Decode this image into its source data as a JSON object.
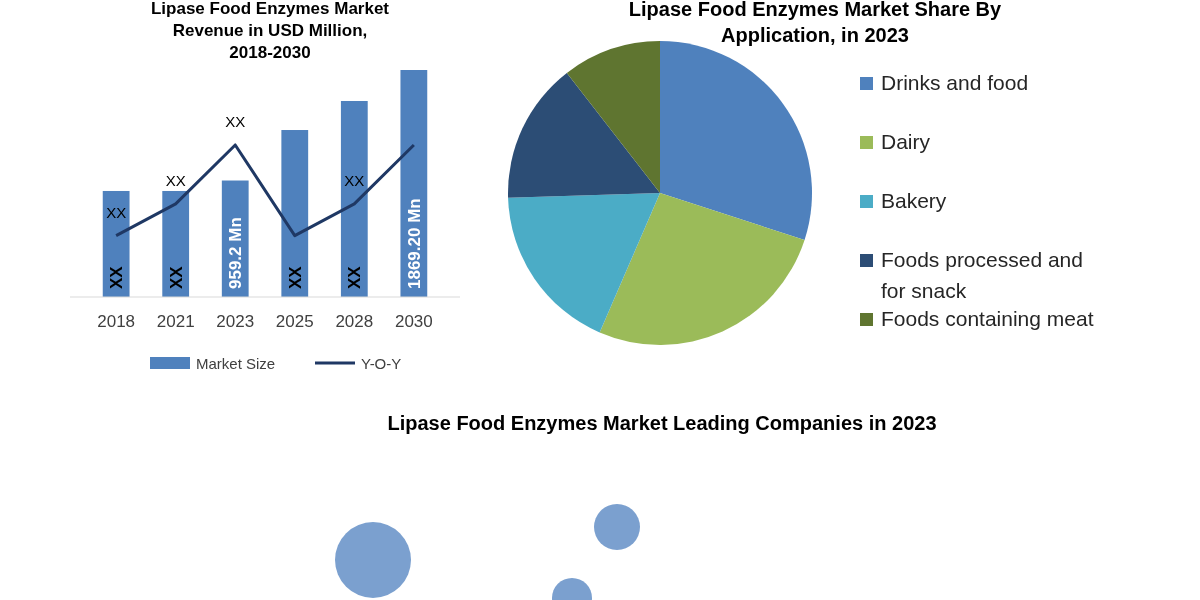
{
  "chart_data": [
    {
      "type": "bar",
      "title": "Lipase Food Enzymes Market Revenue in USD Million, 2018-2030",
      "categories": [
        "2018",
        "2021",
        "2023",
        "2025",
        "2028",
        "2030"
      ],
      "legend": "bottom",
      "series": [
        {
          "name": "Market Size",
          "type": "bar",
          "color": "#4f81bd",
          "values": [
            873,
            873,
            959.2,
            1375,
            1614,
            1869.2
          ],
          "value_labels": [
            "XX",
            "XX",
            "959.2 Mn",
            "XX",
            "XX",
            "1869.20 Mn"
          ]
        },
        {
          "name": "Y-O-Y",
          "type": "line",
          "color": "#1f3864",
          "values": [
            505,
            767,
            1252,
            505,
            767,
            1252
          ],
          "value_labels": [
            "XX",
            "XX",
            "XX",
            null,
            "XX",
            null
          ]
        }
      ]
    },
    {
      "type": "pie",
      "title": "Lipase Food Enzymes Market Share By Application, in 2023",
      "categories": [
        "Drinks and food",
        "Dairy",
        "Bakery",
        "Foods processed and for snack",
        "Foods containing meat"
      ],
      "values": [
        30,
        26.5,
        18,
        15,
        10.5
      ],
      "colors": [
        "#4f81bd",
        "#9bbb59",
        "#4bacc6",
        "#2c4d75",
        "#5f7530"
      ],
      "legend": "right"
    },
    {
      "type": "other",
      "title": "Lipase Food Enzymes Market Leading Companies in 2023"
    }
  ]
}
